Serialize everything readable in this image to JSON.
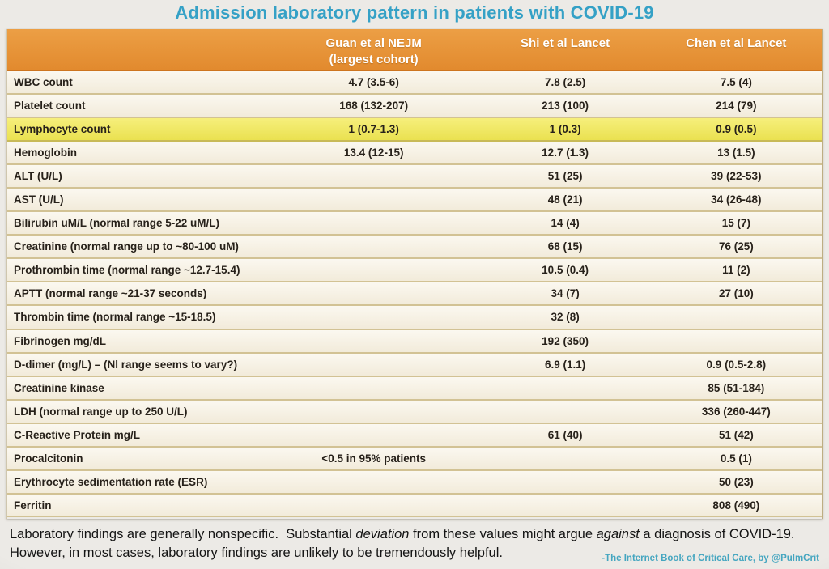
{
  "title": "Admission laboratory pattern in patients with COVID-19",
  "table": {
    "columns": [
      {
        "label": "Guan et al NEJM",
        "sublabel": "(largest cohort)"
      },
      {
        "label": "Shi et al Lancet",
        "sublabel": ""
      },
      {
        "label": "Chen et al Lancet",
        "sublabel": ""
      }
    ],
    "rows": [
      {
        "label": "WBC count",
        "guan": "4.7 (3.5-6)",
        "shi": "7.8 (2.5)",
        "chen": "7.5 (4)",
        "highlight": false
      },
      {
        "label": "Platelet count",
        "guan": "168 (132-207)",
        "shi": "213 (100)",
        "chen": "214 (79)",
        "highlight": false
      },
      {
        "label": "Lymphocyte count",
        "guan": "1 (0.7-1.3)",
        "shi": "1 (0.3)",
        "chen": "0.9 (0.5)",
        "highlight": true
      },
      {
        "label": "Hemoglobin",
        "guan": "13.4 (12-15)",
        "shi": "12.7 (1.3)",
        "chen": "13 (1.5)",
        "highlight": false
      },
      {
        "label": "ALT (U/L)",
        "guan": "",
        "shi": "51 (25)",
        "chen": "39 (22-53)",
        "highlight": false
      },
      {
        "label": "AST (U/L)",
        "guan": "",
        "shi": "48 (21)",
        "chen": "34 (26-48)",
        "highlight": false
      },
      {
        "label": "Bilirubin uM/L (normal range 5-22 uM/L)",
        "guan": "",
        "shi": "14 (4)",
        "chen": "15 (7)",
        "highlight": false
      },
      {
        "label": "Creatinine (normal range up to ~80-100 uM)",
        "guan": "",
        "shi": "68 (15)",
        "chen": "76 (25)",
        "highlight": false
      },
      {
        "label": "Prothrombin time (normal range ~12.7-15.4)",
        "guan": "",
        "shi": "10.5 (0.4)",
        "chen": "11 (2)",
        "highlight": false
      },
      {
        "label": "APTT (normal range ~21-37 seconds)",
        "guan": "",
        "shi": "34 (7)",
        "chen": "27 (10)",
        "highlight": false
      },
      {
        "label": "Thrombin time (normal range ~15-18.5)",
        "guan": "",
        "shi": "32 (8)",
        "chen": "",
        "highlight": false
      },
      {
        "label": "Fibrinogen mg/dL",
        "guan": "",
        "shi": "192 (350)",
        "chen": "",
        "highlight": false
      },
      {
        "label": "D-dimer (mg/L) – (Nl range seems to vary?)",
        "guan": "",
        "shi": "6.9 (1.1)",
        "chen": "0.9 (0.5-2.8)",
        "highlight": false
      },
      {
        "label": "Creatinine kinase",
        "guan": "",
        "shi": "",
        "chen": "85 (51-184)",
        "highlight": false
      },
      {
        "label": "LDH (normal range up to 250 U/L)",
        "guan": "",
        "shi": "",
        "chen": "336 (260-447)",
        "highlight": false
      },
      {
        "label": "C-Reactive Protein mg/L",
        "guan": "",
        "shi": "61 (40)",
        "chen": "51 (42)",
        "highlight": false
      },
      {
        "label": "Procalcitonin",
        "guan": "<0.5 in 95% patients",
        "shi": "",
        "chen": "0.5 (1)",
        "highlight": false
      },
      {
        "label": "Erythrocyte sedimentation rate (ESR)",
        "guan": "",
        "shi": "",
        "chen": "50 (23)",
        "highlight": false
      },
      {
        "label": "Ferritin",
        "guan": "",
        "shi": "",
        "chen": "808 (490)",
        "highlight": false
      }
    ]
  },
  "footer": {
    "line1_parts": [
      {
        "text": "Laboratory findings are generally nonspecific.  Substantial ",
        "italic": false
      },
      {
        "text": "deviation",
        "italic": true
      },
      {
        "text": " from these values might argue ",
        "italic": false
      },
      {
        "text": "against",
        "italic": true
      },
      {
        "text": " a diagnosis of COVID-19.",
        "italic": false
      }
    ],
    "line2": "However, in most cases, laboratory findings are unlikely to be tremendously helpful.",
    "attribution": "-The Internet Book of Critical Care, by @PulmCrit"
  },
  "colors": {
    "page_bg": "#eceae6",
    "title_teal": "#35a1c6",
    "header_orange_top": "#ec9f45",
    "header_orange_bottom": "#e28a2e",
    "header_border": "#cd7520",
    "row_cream_top": "#fbf8f0",
    "row_cream_bottom": "#f2ebda",
    "row_divider": "#d2c294",
    "highlight_yellow_top": "#f6ef7c",
    "highlight_yellow_bottom": "#eae150",
    "text_dark": "#27211a",
    "footer_text": "#141414",
    "attribution_teal": "#45a6c0"
  }
}
